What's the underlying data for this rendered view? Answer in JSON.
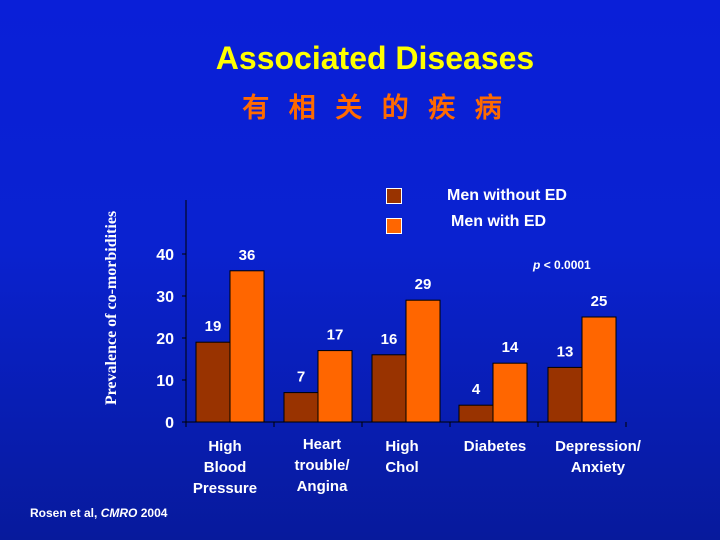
{
  "title": "Associated Diseases",
  "subtitle": "有 相 关 的 疾 病",
  "note": {
    "p_symbol": "p",
    "p_rest": "< 0.0001"
  },
  "citation": {
    "authors": "Rosen et al,",
    "journal": "CMRO",
    "year": "2004"
  },
  "colors": {
    "background": "#0a1fd8",
    "title": "#ffff00",
    "subtitle": "#ff6a00",
    "men_without_ed": "#993300",
    "men_with_ed": "#ff6600",
    "text": "#ffffff"
  },
  "chart_data": {
    "type": "bar",
    "ylabel": "Prevalence of co-morbidities",
    "xlabel": "",
    "ylim": [
      0,
      50
    ],
    "yticks": [
      0,
      10,
      20,
      30,
      40
    ],
    "grid": false,
    "legend_position": "top-right",
    "categories": [
      "High\nBlood\nPressure",
      "Heart\ntrouble/\nAngina",
      "High\nChol",
      "Diabetes",
      "Depression/\nAnxiety"
    ],
    "series": [
      {
        "name": "Men without ED",
        "values": [
          19,
          7,
          16,
          4,
          13
        ]
      },
      {
        "name": "Men with ED",
        "values": [
          36,
          17,
          29,
          14,
          25
        ]
      }
    ]
  }
}
